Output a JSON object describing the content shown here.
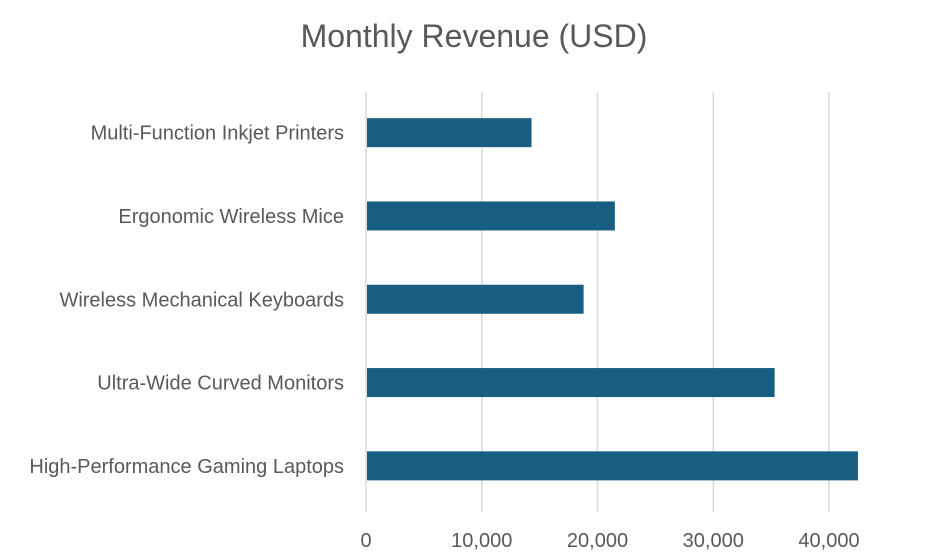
{
  "chart_data": {
    "type": "bar",
    "orientation": "horizontal",
    "title": "Monthly Revenue (USD)",
    "xlabel": "",
    "ylabel": "",
    "categories": [
      "Multi-Function Inkjet Printers",
      "Ergonomic Wireless Mice",
      "Wireless Mechanical Keyboards",
      "Ultra-Wide Curved Monitors",
      "High-Performance Gaming Laptops"
    ],
    "values": [
      14300,
      21500,
      18800,
      35300,
      42500
    ],
    "xlim": [
      0,
      40000
    ],
    "xticks": [
      0,
      10000,
      20000,
      30000,
      40000
    ],
    "xtick_labels": [
      "0",
      "10,000",
      "20,000",
      "30,000",
      "40,000"
    ],
    "grid": "vertical",
    "legend": "none",
    "bar_color": "#175E82",
    "grid_color": "#D9D9D9"
  }
}
